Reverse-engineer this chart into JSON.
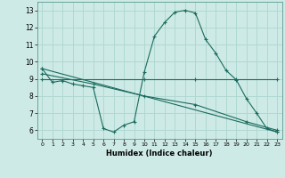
{
  "xlabel": "Humidex (Indice chaleur)",
  "background_color": "#ceeae6",
  "grid_color": "#b0d8d2",
  "line_color": "#1a6b5e",
  "xlim": [
    -0.5,
    23.5
  ],
  "ylim": [
    5.5,
    13.5
  ],
  "xticks": [
    0,
    1,
    2,
    3,
    4,
    5,
    6,
    7,
    8,
    9,
    10,
    11,
    12,
    13,
    14,
    15,
    16,
    17,
    18,
    19,
    20,
    21,
    22,
    23
  ],
  "yticks": [
    6,
    7,
    8,
    9,
    10,
    11,
    12,
    13
  ],
  "series": [
    {
      "x": [
        0,
        1,
        2,
        3,
        4,
        5,
        6,
        7,
        8,
        9,
        10,
        11,
        12,
        13,
        14,
        15,
        16,
        17,
        18,
        19,
        20,
        21,
        22,
        23
      ],
      "y": [
        9.6,
        8.8,
        8.9,
        8.7,
        8.6,
        8.5,
        6.1,
        5.9,
        6.3,
        6.5,
        9.4,
        11.5,
        12.3,
        12.9,
        13.0,
        12.85,
        11.3,
        10.5,
        9.5,
        8.95,
        7.85,
        7.0,
        6.1,
        5.9
      ]
    },
    {
      "x": [
        0,
        10,
        15,
        19,
        23
      ],
      "y": [
        9.0,
        9.0,
        9.0,
        9.0,
        9.0
      ]
    },
    {
      "x": [
        0,
        23
      ],
      "y": [
        9.6,
        5.9
      ]
    },
    {
      "x": [
        0,
        5,
        10,
        15,
        20,
        23
      ],
      "y": [
        9.3,
        8.7,
        8.0,
        7.5,
        6.5,
        6.0
      ]
    }
  ]
}
